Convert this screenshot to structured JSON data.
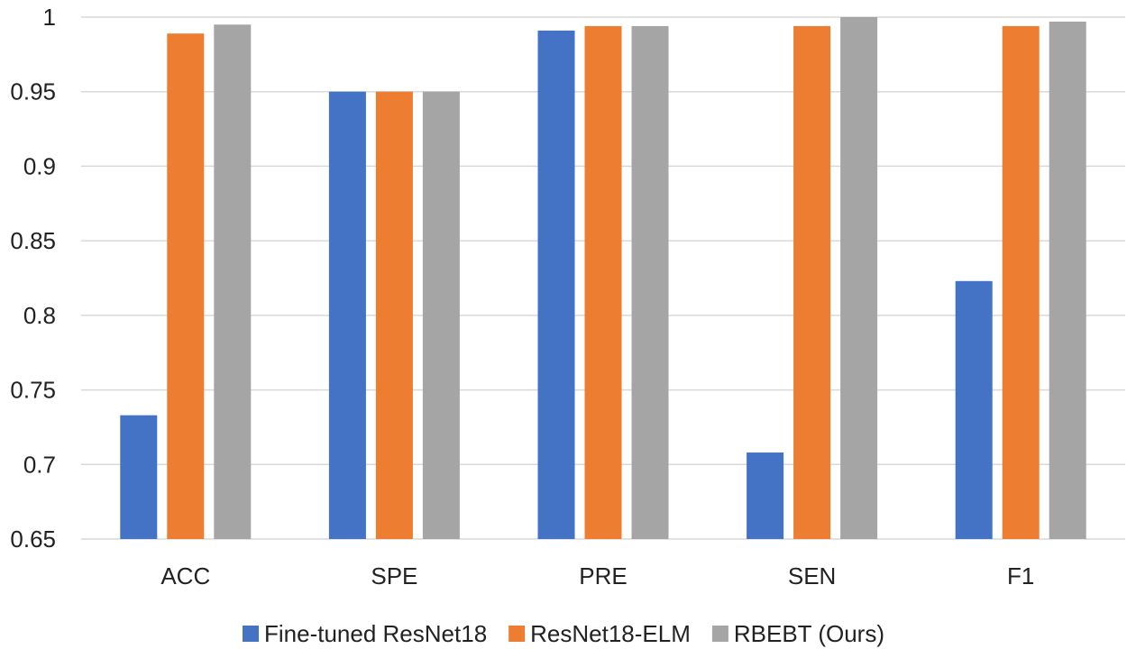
{
  "chart_data": {
    "type": "bar",
    "categories": [
      "ACC",
      "SPE",
      "PRE",
      "SEN",
      "F1"
    ],
    "series": [
      {
        "name": "Fine-tuned ResNet18",
        "color": "#4472C4",
        "values": [
          0.733,
          0.95,
          0.991,
          0.708,
          0.823
        ]
      },
      {
        "name": "ResNet18-ELM",
        "color": "#ED7D31",
        "values": [
          0.989,
          0.95,
          0.994,
          0.994,
          0.994
        ]
      },
      {
        "name": "RBEBT (Ours)",
        "color": "#A5A5A5",
        "values": [
          0.995,
          0.95,
          0.994,
          1.0,
          0.997
        ]
      }
    ],
    "yticks": [
      "0.65",
      "0.7",
      "0.75",
      "0.8",
      "0.85",
      "0.9",
      "0.95",
      "1"
    ],
    "ylim": [
      0.65,
      1.0
    ],
    "grid": true,
    "legend_position": "bottom"
  }
}
